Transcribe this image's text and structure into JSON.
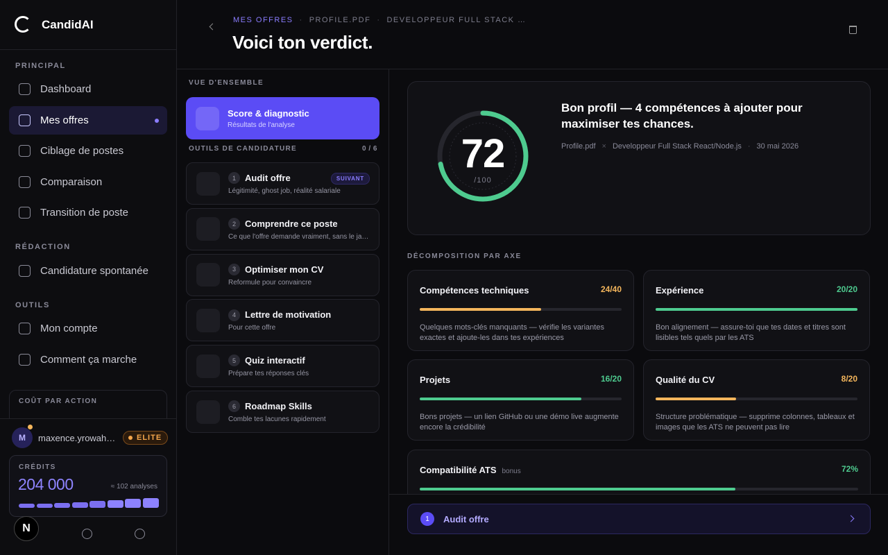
{
  "sidebar": {
    "brand": "CandidAI",
    "sections": [
      {
        "title": "PRINCIPAL",
        "items": [
          "Dashboard",
          "Mes offres",
          "Ciblage de postes",
          "Comparaison",
          "Transition de poste"
        ]
      },
      {
        "title": "RÉDACTION",
        "items": [
          "Candidature spontanée"
        ]
      },
      {
        "title": "OUTILS",
        "items": [
          "Mon compte",
          "Comment ça marche"
        ]
      }
    ],
    "cost_title": "COÛT PAR ACTION",
    "user": {
      "initial": "M",
      "name": "maxence.yrowah…",
      "badge": "ELITE"
    },
    "credits": {
      "label": "CRÉDITS",
      "amount": "204 000",
      "analyses": "≈ 102 analyses"
    },
    "footer_letter": "N"
  },
  "header": {
    "breadcrumb": [
      "MES OFFRES",
      "PROFILE.PDF",
      "DEVELOPPEUR FULL STACK …"
    ],
    "title": "Voici ton verdict."
  },
  "overview": {
    "title": "VUE D'ENSEMBLE",
    "active": {
      "title": "Score & diagnostic",
      "subtitle": "Résultats de l'analyse"
    },
    "tools_title": "OUTILS DE CANDIDATURE",
    "tools_count": "0 / 6",
    "tools": [
      {
        "num": "1",
        "title": "Audit offre",
        "subtitle": "Légitimité, ghost job, réalité salariale",
        "tag": "SUIVANT"
      },
      {
        "num": "2",
        "title": "Comprendre ce poste",
        "subtitle": "Ce que l'offre demande vraiment, sans le ja…"
      },
      {
        "num": "3",
        "title": "Optimiser mon CV",
        "subtitle": "Reformule pour convaincre"
      },
      {
        "num": "4",
        "title": "Lettre de motivation",
        "subtitle": "Pour cette offre"
      },
      {
        "num": "5",
        "title": "Quiz interactif",
        "subtitle": "Prépare tes réponses clés"
      },
      {
        "num": "6",
        "title": "Roadmap Skills",
        "subtitle": "Comble tes lacunes rapidement"
      }
    ]
  },
  "verdict": {
    "score": 72,
    "score_max": 100,
    "score_max_label": "/100",
    "color": "#4ecb8f",
    "headline": "Bon profil — 4 compétences à ajouter pour maximiser tes chances.",
    "meta": [
      "Profile.pdf",
      "Developpeur Full Stack React/Node.js",
      "30 mai 2026"
    ]
  },
  "axes": {
    "title": "DÉCOMPOSITION PAR AXE",
    "items": [
      {
        "title": "Compétences techniques",
        "label": "24/40",
        "value": 24,
        "max": 40,
        "color": "#f4b65c",
        "text": "Quelques mots-clés manquants — vérifie les variantes exactes et ajoute-les dans tes expériences"
      },
      {
        "title": "Expérience",
        "label": "20/20",
        "value": 20,
        "max": 20,
        "color": "#4ecb8f",
        "text": "Bon alignement — assure-toi que tes dates et titres sont lisibles tels quels par les ATS"
      },
      {
        "title": "Projets",
        "label": "16/20",
        "value": 16,
        "max": 20,
        "color": "#4ecb8f",
        "text": "Bons projets — un lien GitHub ou une démo live augmente encore la crédibilité"
      },
      {
        "title": "Qualité du CV",
        "label": "8/20",
        "value": 8,
        "max": 20,
        "color": "#f4b65c",
        "text": "Structure problématique — supprime colonnes, tableaux et images que les ATS ne peuvent pas lire"
      }
    ],
    "ats": {
      "title": "Compatibilité ATS",
      "tag": "bonus",
      "label": "72%",
      "value": 72,
      "max": 100,
      "color": "#4ecb8f"
    }
  },
  "next": {
    "num": "1",
    "label": "Audit offre"
  }
}
